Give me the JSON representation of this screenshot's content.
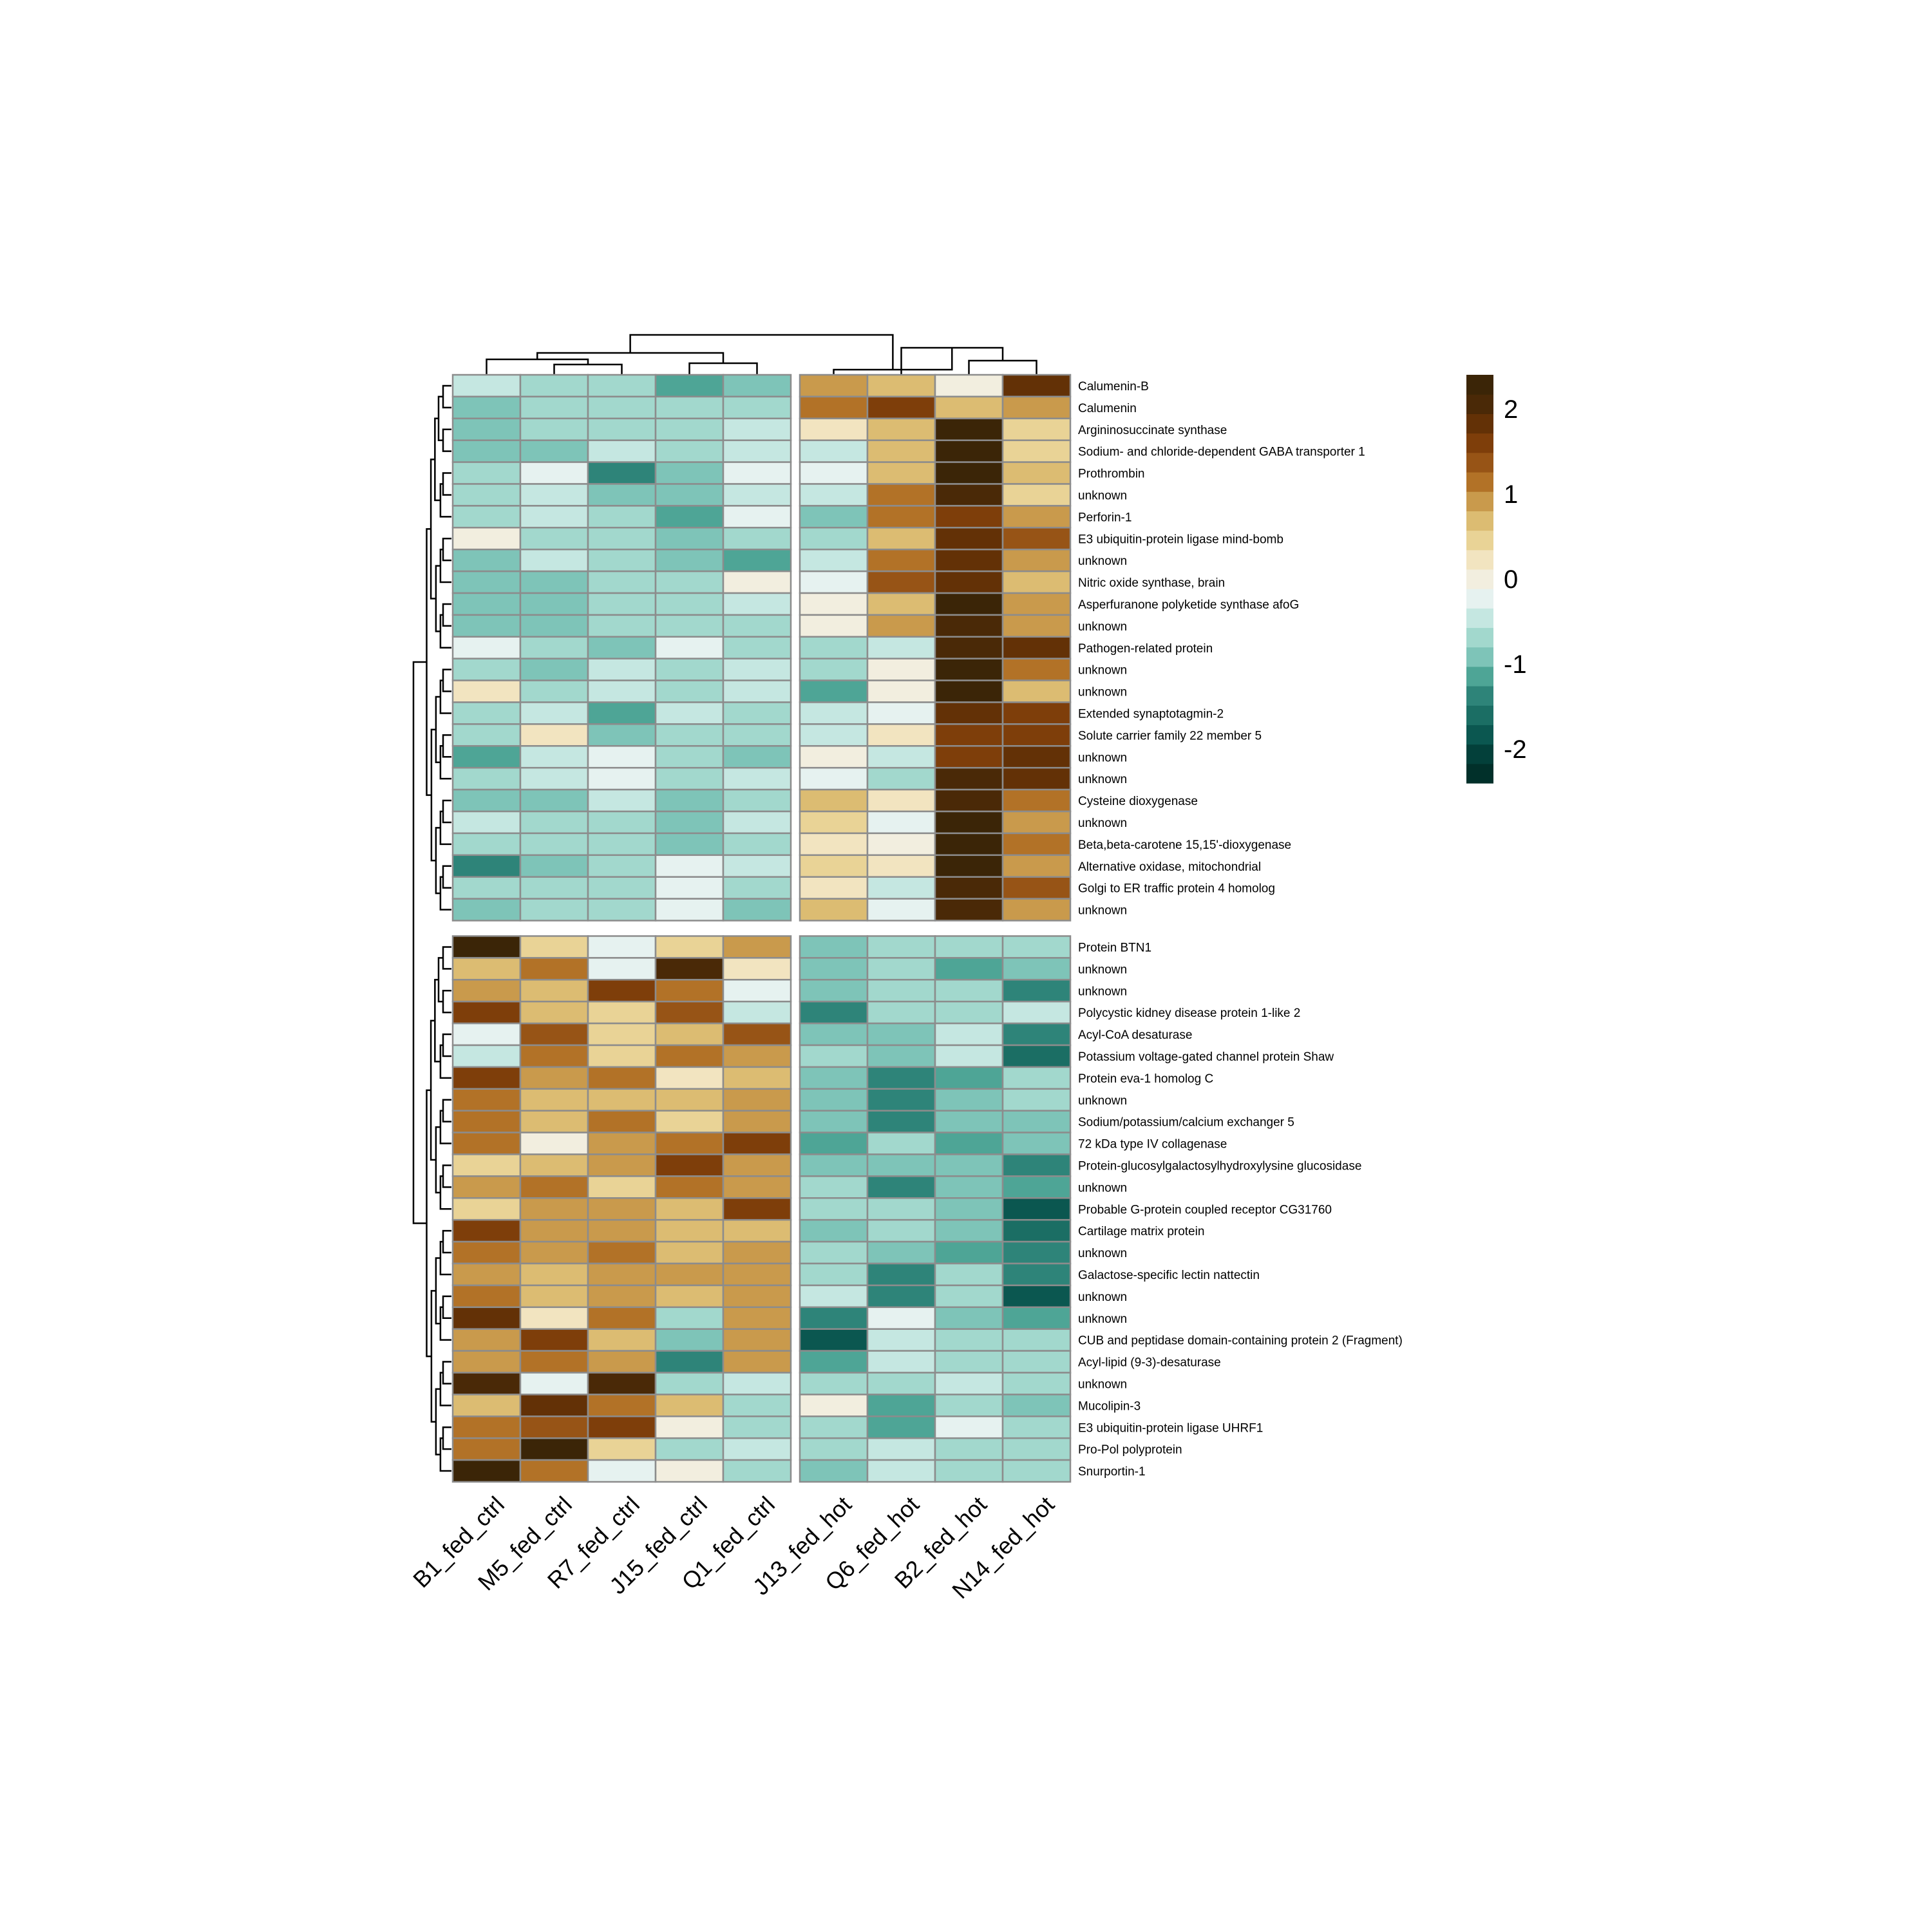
{
  "chart_data": {
    "type": "heatmap",
    "columns": [
      "B1_fed_ctrl",
      "M5_fed_ctrl",
      "R7_fed_ctrl",
      "J15_fed_ctrl",
      "Q1_fed_ctrl",
      "J13_fed_hot",
      "Q6_fed_hot",
      "B2_fed_hot",
      "N14_fed_hot"
    ],
    "column_groups": [
      5,
      4
    ],
    "row_groups": [
      25,
      25
    ],
    "rows": [
      "Calumenin-B",
      "Calumenin",
      "Argininosuccinate synthase",
      "Sodium- and chloride-dependent GABA transporter 1",
      "Prothrombin",
      "unknown",
      "Perforin-1",
      "E3 ubiquitin-protein ligase mind-bomb",
      "unknown",
      "Nitric oxide synthase, brain",
      "Asperfuranone polyketide synthase afoG",
      "unknown",
      "Pathogen-related protein",
      "unknown",
      "unknown",
      "Extended synaptotagmin-2",
      "Solute carrier family 22 member 5",
      "unknown",
      "unknown",
      "Cysteine dioxygenase",
      "unknown",
      "Beta,beta-carotene 15,15'-dioxygenase",
      "Alternative oxidase, mitochondrial",
      "Golgi to ER traffic protein 4 homolog",
      "unknown",
      "Protein BTN1",
      "unknown",
      "unknown",
      "Polycystic kidney disease protein 1-like 2",
      "Acyl-CoA desaturase",
      "Potassium voltage-gated channel protein Shaw",
      "Protein eva-1 homolog C",
      "unknown",
      "Sodium/potassium/calcium exchanger 5",
      "72 kDa type IV collagenase",
      "Protein-glucosylgalactosylhydroxylysine glucosidase",
      "unknown",
      "Probable G-protein coupled receptor CG31760",
      "Cartilage matrix protein",
      "unknown",
      "Galactose-specific lectin nattectin",
      "unknown",
      "unknown",
      "CUB and peptidase domain-containing protein 2 (Fragment)",
      "Acyl-lipid (9-3)-desaturase",
      "unknown",
      "Mucolipin-3",
      "E3 ubiquitin-protein ligase UHRF1",
      "Pro-Pol polyprotein",
      "Snurportin-1"
    ],
    "values": [
      [
        -0.5,
        -0.6,
        -0.6,
        -1.1,
        -0.9,
        1.0,
        0.7,
        0.1,
        1.8
      ],
      [
        -1.0,
        -0.8,
        -0.7,
        -0.8,
        -0.6,
        1.1,
        1.7,
        0.6,
        0.9
      ],
      [
        -0.9,
        -0.7,
        -0.6,
        -0.6,
        -0.5,
        0.2,
        0.7,
        2.3,
        0.5
      ],
      [
        -0.9,
        -0.9,
        -0.4,
        -0.6,
        -0.4,
        -0.4,
        0.6,
        2.3,
        0.5
      ],
      [
        -0.7,
        -0.2,
        -1.4,
        -0.9,
        -0.2,
        -0.3,
        0.6,
        2.3,
        0.6
      ],
      [
        -0.7,
        -0.5,
        -1.0,
        -1.0,
        -0.5,
        -0.5,
        1.1,
        2.1,
        0.5
      ],
      [
        -0.6,
        -0.4,
        -0.6,
        -1.1,
        -0.2,
        -1.0,
        1.1,
        1.7,
        1.0
      ],
      [
        -0.1,
        -0.7,
        -0.8,
        -1.0,
        -0.7,
        -0.7,
        0.6,
        1.9,
        1.4
      ],
      [
        -0.9,
        -0.4,
        -0.7,
        -0.9,
        -1.1,
        -0.4,
        1.2,
        1.9,
        1.0
      ],
      [
        -1.0,
        -0.9,
        -0.7,
        -0.8,
        -0.1,
        -0.2,
        1.4,
        1.9,
        0.7
      ],
      [
        -1.0,
        -1.0,
        -0.6,
        -0.8,
        -0.4,
        0.1,
        0.7,
        2.2,
        0.9
      ],
      [
        -1.0,
        -0.9,
        -0.8,
        -0.8,
        -0.6,
        -0.1,
        0.9,
        2.0,
        0.9
      ],
      [
        -0.2,
        -0.8,
        -0.9,
        -0.2,
        -0.6,
        -0.7,
        -0.5,
        2.0,
        1.8
      ],
      [
        -0.7,
        -0.9,
        -0.5,
        -0.7,
        -0.5,
        -0.7,
        -0.1,
        2.2,
        1.1
      ],
      [
        0.2,
        -0.6,
        -0.4,
        -0.6,
        -0.5,
        -1.1,
        0.1,
        2.4,
        0.6
      ],
      [
        -0.6,
        -0.4,
        -1.1,
        -0.5,
        -0.6,
        -0.4,
        -0.2,
        1.8,
        1.7
      ],
      [
        -0.7,
        0.2,
        -0.9,
        -0.8,
        -0.6,
        -0.5,
        0.2,
        1.7,
        1.7
      ],
      [
        -1.1,
        -0.4,
        -0.2,
        -0.6,
        -1.0,
        0.1,
        -0.4,
        1.7,
        1.8
      ],
      [
        -0.6,
        -0.4,
        -0.3,
        -0.6,
        -0.5,
        -0.3,
        -0.8,
        2.1,
        1.8
      ],
      [
        -0.9,
        -0.9,
        -0.5,
        -1.0,
        -0.8,
        0.6,
        0.2,
        2.1,
        1.1
      ],
      [
        -0.5,
        -0.8,
        -0.7,
        -1.0,
        -0.5,
        0.5,
        -0.2,
        2.3,
        0.8
      ],
      [
        -0.6,
        -0.7,
        -0.8,
        -0.9,
        -0.6,
        0.3,
        0.1,
        2.2,
        1.2
      ],
      [
        -1.4,
        -1.0,
        -0.6,
        -0.2,
        -0.4,
        0.4,
        0.2,
        2.2,
        1.0
      ],
      [
        -0.6,
        -0.8,
        -0.8,
        -0.2,
        -0.8,
        0.3,
        -0.5,
        2.1,
        1.4
      ],
      [
        -0.9,
        -0.6,
        -0.7,
        -0.3,
        -1.0,
        0.6,
        -0.2,
        2.1,
        1.0
      ],
      [
        2.2,
        0.5,
        -0.2,
        0.5,
        0.8,
        -1.0,
        -0.8,
        -0.6,
        -0.8
      ],
      [
        0.7,
        1.1,
        -0.2,
        2.0,
        0.2,
        -0.9,
        -0.7,
        -1.1,
        -0.9
      ],
      [
        0.9,
        0.7,
        1.5,
        1.1,
        -0.2,
        -1.0,
        -0.8,
        -0.6,
        -1.4
      ],
      [
        1.7,
        0.7,
        0.4,
        1.4,
        -0.4,
        -1.4,
        -0.8,
        -0.8,
        -0.4
      ],
      [
        -0.2,
        1.4,
        0.5,
        0.7,
        1.4,
        -0.9,
        -1.0,
        -0.4,
        -1.4
      ],
      [
        -0.4,
        1.1,
        0.5,
        1.1,
        1.0,
        -0.8,
        -1.0,
        -0.4,
        -1.7
      ],
      [
        1.5,
        0.9,
        1.1,
        0.2,
        0.7,
        -0.9,
        -1.4,
        -1.1,
        -0.6
      ],
      [
        1.1,
        0.7,
        0.7,
        0.7,
        1.0,
        -0.9,
        -1.4,
        -1.0,
        -0.8
      ],
      [
        1.1,
        0.7,
        1.1,
        0.4,
        0.9,
        -0.9,
        -1.4,
        -0.9,
        -1.0
      ],
      [
        1.1,
        0.1,
        0.8,
        1.2,
        1.5,
        -1.1,
        -0.8,
        -1.1,
        -0.9
      ],
      [
        0.4,
        0.7,
        0.9,
        1.7,
        1.0,
        -0.9,
        -1.0,
        -0.9,
        -1.4
      ],
      [
        0.9,
        1.1,
        0.4,
        1.1,
        1.0,
        -0.8,
        -1.4,
        -0.9,
        -1.1
      ],
      [
        0.5,
        0.8,
        0.9,
        0.7,
        1.5,
        -0.6,
        -0.8,
        -1.0,
        -1.8
      ],
      [
        1.5,
        0.8,
        0.9,
        0.7,
        0.7,
        -0.9,
        -0.8,
        -1.0,
        -1.7
      ],
      [
        1.1,
        0.8,
        1.1,
        0.6,
        0.8,
        -0.6,
        -0.9,
        -1.1,
        -1.4
      ],
      [
        0.9,
        0.7,
        0.9,
        1.0,
        0.8,
        -0.6,
        -1.4,
        -0.6,
        -1.4
      ],
      [
        1.1,
        0.7,
        0.9,
        0.6,
        0.8,
        -0.4,
        -1.4,
        -0.6,
        -1.8
      ],
      [
        1.8,
        0.3,
        1.1,
        -0.7,
        0.9,
        -1.4,
        -0.3,
        -1.0,
        -1.1
      ],
      [
        0.9,
        1.7,
        0.7,
        -0.9,
        0.9,
        -1.8,
        -0.4,
        -0.8,
        -0.6
      ],
      [
        0.9,
        1.1,
        0.9,
        -1.4,
        0.8,
        -1.1,
        -0.4,
        -0.6,
        -0.6
      ],
      [
        2.0,
        -0.2,
        2.0,
        -0.6,
        -0.4,
        -0.6,
        -0.7,
        -0.4,
        -0.6
      ],
      [
        0.6,
        1.8,
        1.1,
        0.6,
        -0.7,
        -0.1,
        -1.1,
        -0.6,
        -1.0
      ],
      [
        1.2,
        1.4,
        1.7,
        -0.1,
        -0.6,
        -0.8,
        -1.1,
        -0.3,
        -0.6
      ],
      [
        1.1,
        2.2,
        0.4,
        -0.8,
        -0.4,
        -0.8,
        -0.5,
        -0.6,
        -0.8
      ],
      [
        2.4,
        1.1,
        -0.2,
        -0.1,
        -0.8,
        -0.9,
        -0.5,
        -0.6,
        -0.7
      ]
    ],
    "color_scale": {
      "min": -2.4,
      "max": 2.4,
      "palette": [
        "#01302a",
        "#03403a",
        "#0b5750",
        "#1b6e64",
        "#2e8479",
        "#4ea596",
        "#7ec4b8",
        "#a2d8cd",
        "#c5e7e1",
        "#e6f2f0",
        "#f2eedf",
        "#f2e4c0",
        "#e9d396",
        "#dcbc72",
        "#c99a4c",
        "#b27227",
        "#975416",
        "#7e3e0a",
        "#633106",
        "#4a2907",
        "#3b2507"
      ]
    },
    "legend": {
      "ticks": [
        2,
        1,
        0,
        -1,
        -2
      ],
      "tick_labels": [
        "2",
        "1",
        "0",
        "-1",
        "-2"
      ],
      "position": "right"
    },
    "dendrograms": {
      "rows": true,
      "columns": true
    }
  }
}
